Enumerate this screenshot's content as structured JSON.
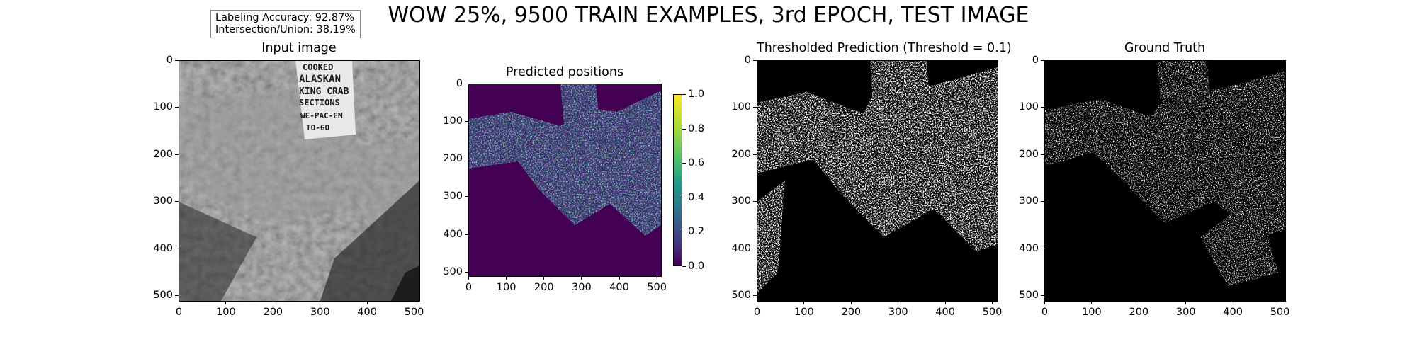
{
  "figure": {
    "title": "WOW 25%, 9500 TRAIN EXAMPLES, 3rd EPOCH, TEST IMAGE",
    "metrics": {
      "accuracy": "Labeling Accuracy:  92.87%",
      "iou": "Intersection/Union:  38.19%"
    },
    "colors": {
      "viridis_low": "#440154",
      "viridis_high": "#fde725",
      "mask_fg": "#ffffff",
      "mask_bg": "#000000"
    }
  },
  "panels": [
    {
      "id": "input",
      "title": "Input image",
      "image_text": [
        "COOKED",
        "ALASKAN",
        "KING CRAB",
        "SECTIONS",
        "WE-PAC-EM",
        "TO-GO"
      ],
      "x_ticks": [
        "0",
        "100",
        "200",
        "300",
        "400",
        "500"
      ],
      "y_ticks": [
        "0",
        "100",
        "200",
        "300",
        "400",
        "500"
      ]
    },
    {
      "id": "predicted",
      "title": "Predicted positions",
      "x_ticks": [
        "0",
        "100",
        "200",
        "300",
        "400",
        "500"
      ],
      "y_ticks": [
        "0",
        "100",
        "200",
        "300",
        "400",
        "500"
      ],
      "colorbar_ticks": [
        "0.0",
        "0.2",
        "0.4",
        "0.6",
        "0.8",
        "1.0"
      ]
    },
    {
      "id": "thresholded",
      "title": "Thresholded Prediction (Threshold = 0.1)",
      "x_ticks": [
        "0",
        "100",
        "200",
        "300",
        "400",
        "500"
      ],
      "y_ticks": [
        "0",
        "100",
        "200",
        "300",
        "400",
        "500"
      ]
    },
    {
      "id": "ground_truth",
      "title": "Ground Truth",
      "x_ticks": [
        "0",
        "100",
        "200",
        "300",
        "400",
        "500"
      ],
      "y_ticks": [
        "0",
        "100",
        "200",
        "300",
        "400",
        "500"
      ]
    }
  ]
}
